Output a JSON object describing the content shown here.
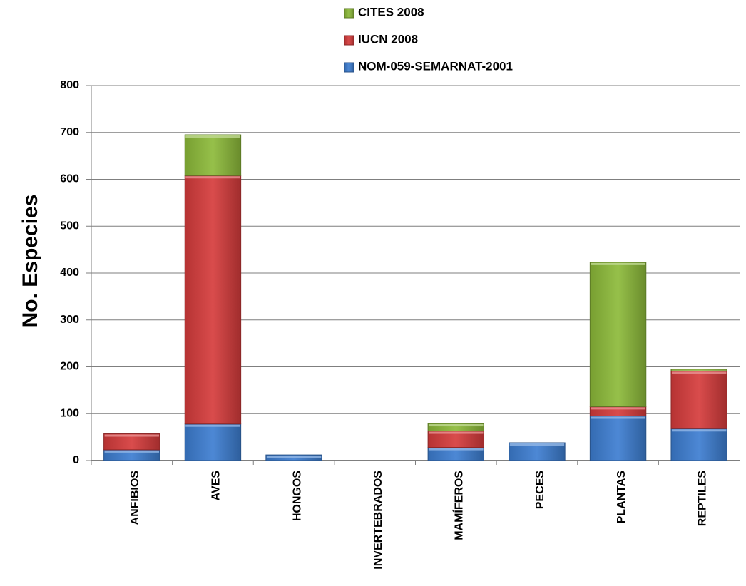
{
  "chart_data": {
    "type": "bar",
    "stacked": true,
    "title": "",
    "xlabel": "",
    "ylabel": "No. Especies",
    "ylim": [
      0,
      800
    ],
    "yticks": [
      0,
      100,
      200,
      300,
      400,
      500,
      600,
      700,
      800
    ],
    "grid": true,
    "legend_position": "top",
    "categories": [
      "ANFIBIOS",
      "AVES",
      "HONGOS",
      "INVERTEBRADOS",
      "MAMÍFEROS",
      "PECES",
      "PLANTAS",
      "REPTILES"
    ],
    "series": [
      {
        "name": "NOM-059-SEMARNAT-2001",
        "color": "#3d7ed1",
        "values": [
          23,
          78,
          12,
          0,
          28,
          38,
          95,
          68
        ]
      },
      {
        "name": "IUCN 2008",
        "color": "#d63c3c",
        "values": [
          34,
          530,
          0,
          0,
          35,
          0,
          20,
          123
        ]
      },
      {
        "name": "CITES 2008",
        "color": "#8dbb3a",
        "values": [
          0,
          87,
          0,
          0,
          16,
          0,
          308,
          4
        ]
      }
    ],
    "legend_order": [
      "CITES 2008",
      "IUCN 2008",
      "NOM-059-SEMARNAT-2001"
    ]
  }
}
